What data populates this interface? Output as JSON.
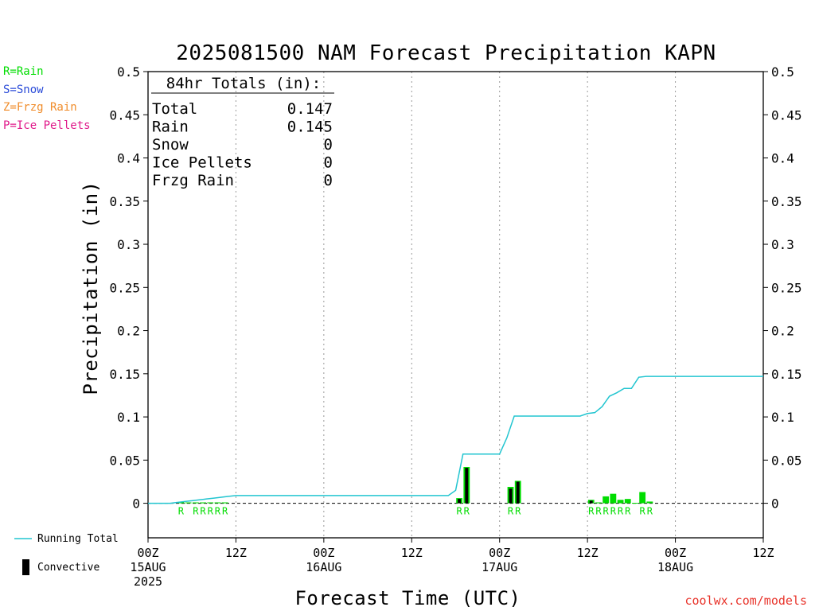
{
  "chart_data": {
    "type": "bar",
    "title": "2025081500 NAM Forecast Precipitation KAPN",
    "xlabel": "Forecast Time (UTC)",
    "ylabel": "Precipitation (in)",
    "ylim": [
      -0.04,
      0.5
    ],
    "xlim_hours": [
      0,
      84
    ],
    "yticks": [
      0,
      0.05,
      0.1,
      0.15,
      0.2,
      0.25,
      0.3,
      0.35,
      0.4,
      0.45,
      0.5
    ],
    "ytick_labels": [
      "0",
      "0.05",
      "0.1",
      "0.15",
      "0.2",
      "0.25",
      "0.3",
      "0.35",
      "0.4",
      "0.45",
      "0.5"
    ],
    "xticks": [
      {
        "hour": 0,
        "lines": [
          "00Z",
          "15AUG",
          "2025"
        ]
      },
      {
        "hour": 12,
        "lines": [
          "12Z"
        ]
      },
      {
        "hour": 24,
        "lines": [
          "00Z",
          "16AUG"
        ]
      },
      {
        "hour": 36,
        "lines": [
          "12Z"
        ]
      },
      {
        "hour": 48,
        "lines": [
          "00Z",
          "17AUG"
        ]
      },
      {
        "hour": 60,
        "lines": [
          "12Z"
        ]
      },
      {
        "hour": 72,
        "lines": [
          "00Z",
          "18AUG"
        ]
      },
      {
        "hour": 84,
        "lines": [
          "12Z"
        ]
      }
    ],
    "grid": "vertical dotted at 12-hour ticks",
    "totals": {
      "header": "84hr Totals (in):",
      "rows": [
        {
          "label": "Total",
          "value": "0.147"
        },
        {
          "label": "Rain",
          "value": "0.145"
        },
        {
          "label": "Snow",
          "value": "0"
        },
        {
          "label": "Ice Pellets",
          "value": "0"
        },
        {
          "label": "Frzg Rain",
          "value": "0"
        }
      ]
    },
    "running_total": {
      "name": "Running Total",
      "color": "#22c5d0",
      "x": [
        0,
        1,
        2,
        3,
        4,
        5,
        6,
        7,
        8,
        9,
        10,
        11,
        12,
        13,
        14,
        15,
        16,
        17,
        18,
        19,
        20,
        21,
        22,
        23,
        24,
        25,
        26,
        27,
        28,
        29,
        30,
        31,
        32,
        33,
        34,
        35,
        36,
        37,
        38,
        39,
        40,
        41,
        42,
        43,
        44,
        45,
        46,
        47,
        48,
        49,
        50,
        51,
        52,
        53,
        54,
        55,
        56,
        57,
        58,
        59,
        60,
        61,
        62,
        63,
        64,
        65,
        66,
        67,
        68,
        69,
        70,
        71,
        72,
        73,
        74,
        75,
        76,
        77,
        78,
        79,
        80,
        81,
        82,
        83,
        84
      ],
      "y": [
        0,
        0,
        0,
        0,
        0.001,
        0.002,
        0.003,
        0.004,
        0.005,
        0.006,
        0.007,
        0.008,
        0.009,
        0.009,
        0.009,
        0.009,
        0.009,
        0.009,
        0.009,
        0.009,
        0.009,
        0.009,
        0.009,
        0.009,
        0.009,
        0.009,
        0.009,
        0.009,
        0.009,
        0.009,
        0.009,
        0.009,
        0.009,
        0.009,
        0.009,
        0.009,
        0.009,
        0.009,
        0.009,
        0.009,
        0.009,
        0.009,
        0.015,
        0.057,
        0.057,
        0.057,
        0.057,
        0.057,
        0.057,
        0.076,
        0.101,
        0.101,
        0.101,
        0.101,
        0.101,
        0.101,
        0.101,
        0.101,
        0.101,
        0.101,
        0.104,
        0.105,
        0.112,
        0.124,
        0.128,
        0.133,
        0.133,
        0.146,
        0.147,
        0.147,
        0.147,
        0.147,
        0.147,
        0.147,
        0.147,
        0.147,
        0.147,
        0.147,
        0.147,
        0.147,
        0.147,
        0.147,
        0.147,
        0.147,
        0.147
      ]
    },
    "precip_bars": {
      "name": "Rain",
      "color": "#00dd00",
      "convective_color": "#000000",
      "bars": [
        {
          "hour": 4,
          "total": 0.0015,
          "convective": 0
        },
        {
          "hour": 5,
          "total": 0.001,
          "convective": 0
        },
        {
          "hour": 6,
          "total": 0.001,
          "convective": 0
        },
        {
          "hour": 7,
          "total": 0.001,
          "convective": 0
        },
        {
          "hour": 8,
          "total": 0.001,
          "convective": 0
        },
        {
          "hour": 9,
          "total": 0.001,
          "convective": 0
        },
        {
          "hour": 10,
          "total": 0.001,
          "convective": 0
        },
        {
          "hour": 42,
          "total": 0.006,
          "convective": 0.005
        },
        {
          "hour": 43,
          "total": 0.042,
          "convective": 0.041
        },
        {
          "hour": 49,
          "total": 0.019,
          "convective": 0.017
        },
        {
          "hour": 50,
          "total": 0.026,
          "convective": 0.025
        },
        {
          "hour": 60,
          "total": 0.004,
          "convective": 0.003
        },
        {
          "hour": 61,
          "total": 0.001,
          "convective": 0
        },
        {
          "hour": 62,
          "total": 0.008,
          "convective": 0
        },
        {
          "hour": 63,
          "total": 0.011,
          "convective": 0
        },
        {
          "hour": 64,
          "total": 0.004,
          "convective": 0
        },
        {
          "hour": 65,
          "total": 0.005,
          "convective": 0
        },
        {
          "hour": 66,
          "total": 0.0005,
          "convective": 0
        },
        {
          "hour": 67,
          "total": 0.013,
          "convective": 0
        },
        {
          "hour": 68,
          "total": 0.002,
          "convective": 0
        }
      ]
    },
    "ptype_markers": {
      "color": "#00dd00",
      "hours": [
        4,
        6,
        7,
        8,
        9,
        10,
        42,
        43,
        49,
        50,
        60,
        61,
        62,
        63,
        64,
        65,
        67,
        68
      ],
      "symbol": "R"
    }
  },
  "ptype_legend": [
    {
      "text": "R=Rain",
      "color": "#00dd00"
    },
    {
      "text": "S=Snow",
      "color": "#2a4bd8"
    },
    {
      "text": "Z=Frzg Rain",
      "color": "#f08c2a"
    },
    {
      "text": "P=Ice Pellets",
      "color": "#e0198a"
    }
  ],
  "series_legend": {
    "running_total_label": "Running Total",
    "convective_label": "Convective"
  },
  "credit": "coolwx.com/models"
}
